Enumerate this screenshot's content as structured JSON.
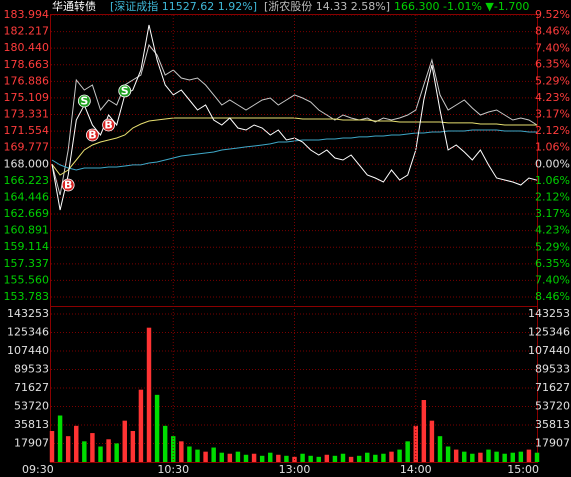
{
  "header": [
    "华通转债",
    "[深证成指 11527.62 1.92%]",
    "[浙农股份 14.33 2.58%]",
    "166.300 -1.01% ▼-1.700"
  ],
  "chart_data": [
    {
      "type": "line",
      "ylim": [
        153.783,
        183.994
      ],
      "yticks": [
        183.994,
        182.217,
        {
          "value": 180.44,
          "label": "180.440"
        },
        178.663,
        176.886,
        175.109,
        173.331,
        171.554,
        169.777,
        {
          "value": 168,
          "label": "168.000"
        },
        166.223,
        164.446,
        162.669,
        160.891,
        159.114,
        157.337,
        {
          "value": 155.56,
          "label": "155.560"
        },
        153.783
      ],
      "y2lim": [
        -8.46,
        9.52
      ],
      "y2ticks": [
        {
          "value": 9.52,
          "label": "9.52%"
        },
        {
          "value": 8.46,
          "label": "8.46%"
        },
        {
          "value": 7.4,
          "label": "7.40%"
        },
        {
          "value": 6.35,
          "label": "6.35%"
        },
        {
          "value": 5.29,
          "label": "5.29%"
        },
        {
          "value": 4.23,
          "label": "4.23%"
        },
        {
          "value": 3.17,
          "label": "3.17%"
        },
        {
          "value": 2.12,
          "label": "2.12%"
        },
        {
          "value": 1.06,
          "label": "1.06%"
        },
        {
          "value": 0,
          "label": "0.00%"
        },
        {
          "value": -1.06,
          "label": "1.06%"
        },
        {
          "value": -2.12,
          "label": "2.12%"
        },
        {
          "value": -3.17,
          "label": "3.17%"
        },
        {
          "value": -4.23,
          "label": "4.23%"
        },
        {
          "value": -5.29,
          "label": "5.29%"
        },
        {
          "value": -6.35,
          "label": "6.35%"
        },
        {
          "value": -7.4,
          "label": "7.40%"
        },
        {
          "value": -8.46,
          "label": "8.46%"
        }
      ],
      "grid": true,
      "series": [
        {
          "color": "#c8c8c8",
          "values": [
            168.0,
            164.71,
            169.53,
            177.03,
            175.96,
            176.5,
            173.82,
            174.89,
            174.35,
            176.5,
            177.03,
            177.57,
            180.78,
            179.71,
            177.57,
            178.1,
            177.25,
            177.03,
            177.25,
            176.5,
            175.43,
            174.35,
            174.89,
            174.35,
            173.82,
            174.35,
            174.89,
            175.1,
            174.35,
            174.89,
            175.43,
            175.1,
            174.67,
            173.82,
            173.28,
            172.75,
            173.28,
            172.96,
            172.75,
            172.96,
            172.53,
            172.96,
            172.75,
            172.96,
            173.28,
            173.82,
            176.5,
            179.17,
            175.43,
            173.82,
            174.35,
            174.89,
            174.03,
            173.28,
            173.6,
            173.82,
            173.28,
            172.75,
            172.96,
            172.75,
            172.21
          ]
        },
        {
          "color": "#3fa8c8",
          "values": [
            168.46,
            167.93,
            167.6,
            167.39,
            167.6,
            167.6,
            167.6,
            167.71,
            167.71,
            167.82,
            167.93,
            167.93,
            168.14,
            168.25,
            168.46,
            168.67,
            168.89,
            169.0,
            169.1,
            169.21,
            169.32,
            169.53,
            169.64,
            169.75,
            169.86,
            169.96,
            170.07,
            170.18,
            170.39,
            170.39,
            170.5,
            170.6,
            170.6,
            170.6,
            170.71,
            170.71,
            170.82,
            170.82,
            170.93,
            170.93,
            171.03,
            171.03,
            171.14,
            171.14,
            171.25,
            171.35,
            171.35,
            171.46,
            171.46,
            171.57,
            171.57,
            171.57,
            171.67,
            171.67,
            171.67,
            171.67,
            171.57,
            171.57,
            171.57,
            171.46,
            171.46
          ]
        },
        {
          "color": "#e8e070",
          "values": [
            168.0,
            166.85,
            167.39,
            168.46,
            169.53,
            170.07,
            170.39,
            170.6,
            170.82,
            171.14,
            171.89,
            172.32,
            172.64,
            172.75,
            172.85,
            172.96,
            172.96,
            172.96,
            172.96,
            172.96,
            172.96,
            172.96,
            172.96,
            172.96,
            172.96,
            172.96,
            172.96,
            172.96,
            172.96,
            172.96,
            172.96,
            172.85,
            172.85,
            172.85,
            172.85,
            172.85,
            172.75,
            172.75,
            172.75,
            172.75,
            172.64,
            172.64,
            172.64,
            172.53,
            172.53,
            172.53,
            172.53,
            172.53,
            172.53,
            172.43,
            172.43,
            172.43,
            172.43,
            172.32,
            172.32,
            172.32,
            172.21,
            172.21,
            172.21,
            172.21,
            172.21
          ]
        },
        {
          "color": "#ffffff",
          "values": [
            168.0,
            163.1,
            166.85,
            172.75,
            174.35,
            172.21,
            171.14,
            173.28,
            172.21,
            175.43,
            175.96,
            178.1,
            182.92,
            179.17,
            176.5,
            175.43,
            175.96,
            174.89,
            173.82,
            174.35,
            172.75,
            172.21,
            172.96,
            171.89,
            171.67,
            172.21,
            171.89,
            171.14,
            171.67,
            170.6,
            170.82,
            170.39,
            169.53,
            169.0,
            169.53,
            168.67,
            168.46,
            169.0,
            167.93,
            166.85,
            166.53,
            166.1,
            167.39,
            166.32,
            166.85,
            169.53,
            174.89,
            178.64,
            173.82,
            169.53,
            170.07,
            169.32,
            168.46,
            169.53,
            167.93,
            166.53,
            166.32,
            166.1,
            165.78,
            166.53,
            166.3
          ]
        }
      ],
      "signals": [
        {
          "label": "B",
          "at": 2,
          "color": "#d82020"
        },
        {
          "label": "S",
          "at": 4,
          "color": "#20a020"
        },
        {
          "label": "B",
          "at": 5,
          "color": "#d82020"
        },
        {
          "label": "B",
          "at": 7,
          "color": "#d82020"
        },
        {
          "label": "S",
          "at": 9,
          "color": "#20a020"
        }
      ]
    },
    {
      "type": "bar",
      "categories": [
        "09:30",
        null,
        null,
        null,
        null,
        null,
        null,
        null,
        null,
        null,
        null,
        null,
        null,
        null,
        null,
        "10:30",
        null,
        null,
        null,
        null,
        null,
        null,
        null,
        null,
        null,
        null,
        null,
        null,
        null,
        null,
        "13:00",
        null,
        null,
        null,
        null,
        null,
        null,
        null,
        null,
        null,
        null,
        null,
        null,
        null,
        null,
        "14:00",
        null,
        null,
        null,
        null,
        null,
        null,
        null,
        null,
        null,
        null,
        null,
        null,
        null,
        null,
        "15:00"
      ],
      "ylim": [
        0,
        143253
      ],
      "yticks": [
        143253,
        125346,
        107440,
        89533,
        71627,
        53720,
        35813,
        17907
      ],
      "grid": true,
      "values": [
        30000,
        45000,
        25000,
        35000,
        20000,
        28000,
        15000,
        22000,
        18000,
        40000,
        30000,
        70000,
        130000,
        65000,
        35000,
        25000,
        20000,
        15000,
        12000,
        10000,
        14000,
        9000,
        8000,
        10000,
        7000,
        8000,
        6000,
        9000,
        7000,
        6000,
        5000,
        8000,
        6000,
        5000,
        7000,
        6000,
        8000,
        5000,
        6000,
        9000,
        7000,
        8000,
        10000,
        12000,
        20000,
        35000,
        60000,
        40000,
        25000,
        15000,
        12000,
        10000,
        8000,
        9000,
        12000,
        10000,
        8000,
        9000,
        10000,
        12000,
        9000
      ],
      "colors": [
        "#f33",
        "#0d0",
        "#f33",
        "#f33",
        "#0d0",
        "#f33",
        "#0d0",
        "#f33",
        "#0d0",
        "#f33",
        "#f33",
        "#f33",
        "#f33",
        "#0d0",
        "#0d0",
        "#0d0",
        "#f33",
        "#0d0",
        "#0d0",
        "#f33",
        "#0d0",
        "#0d0",
        "#f33",
        "#0d0",
        "#0d0",
        "#f33",
        "#0d0",
        "#0d0",
        "#f33",
        "#0d0",
        "#f33",
        "#0d0",
        "#0d0",
        "#0d0",
        "#f33",
        "#0d0",
        "#0d0",
        "#f33",
        "#0d0",
        "#0d0",
        "#0d0",
        "#0d0",
        "#f33",
        "#0d0",
        "#0d0",
        "#f33",
        "#f33",
        "#f33",
        "#0d0",
        "#0d0",
        "#f33",
        "#0d0",
        "#0d0",
        "#f33",
        "#0d0",
        "#0d0",
        "#0d0",
        "#0d0",
        "#0d0",
        "#f33",
        "#0d0"
      ]
    }
  ]
}
